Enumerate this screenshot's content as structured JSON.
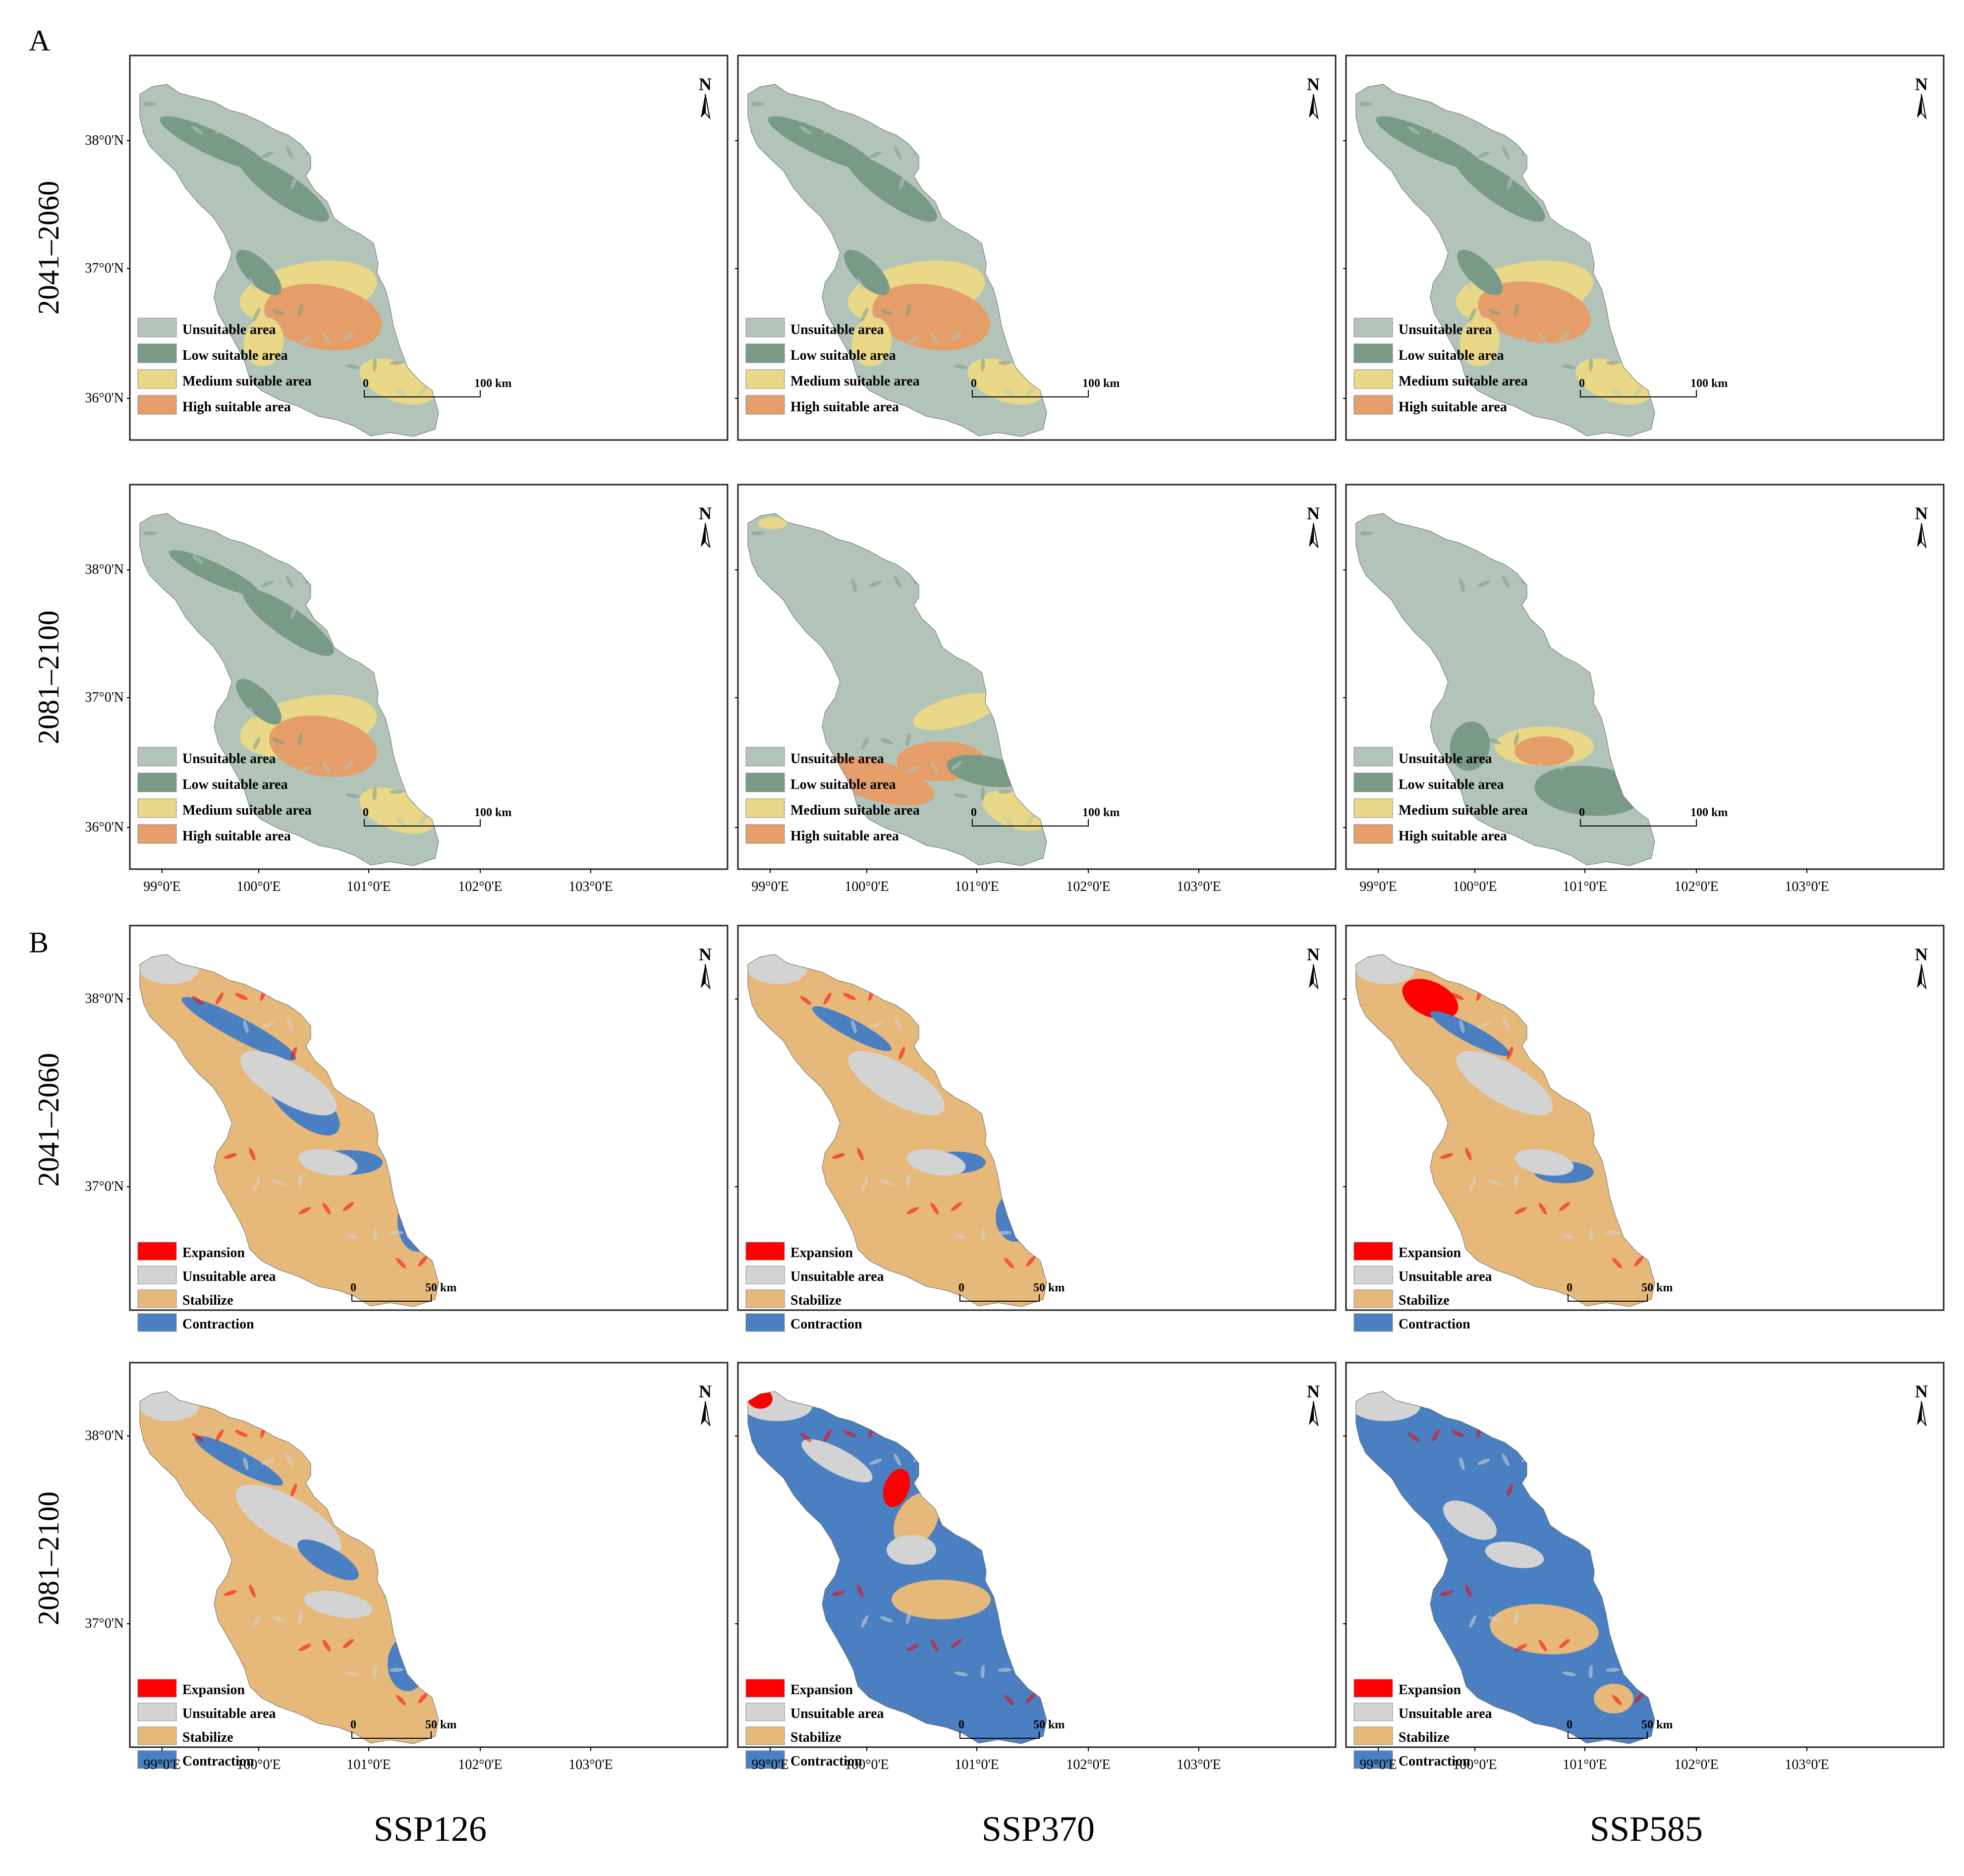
{
  "panels": [
    {
      "label": "A",
      "legend": [
        {
          "text": "Unsuitable area",
          "color": "#b2c4b8"
        },
        {
          "text": "Low suitable area",
          "color": "#7a9a88"
        },
        {
          "text": "Medium suitable area",
          "color": "#e8d888"
        },
        {
          "text": "High suitable area",
          "color": "#e59e6a"
        }
      ],
      "scalebar": {
        "start": "0",
        "end": "100",
        "unit": "km"
      }
    },
    {
      "label": "B",
      "legend": [
        {
          "text": "Expansion",
          "color": "#ff0000"
        },
        {
          "text": "Unsuitable area",
          "color": "#d3d3d3"
        },
        {
          "text": "Stabilize",
          "color": "#e6b97a"
        },
        {
          "text": "Contraction",
          "color": "#4a7fc1"
        }
      ],
      "scalebar": {
        "start": "0",
        "end": "50",
        "unit": "km"
      }
    }
  ],
  "periods": [
    "2041–2060",
    "2081–2100"
  ],
  "scenarios": [
    "SSP126",
    "SSP370",
    "SSP585"
  ],
  "lat_labels": [
    "38°0'N",
    "37°0'N",
    "36°0'N"
  ],
  "lon_labels": [
    "99°0'E",
    "100°0'E",
    "101°0'E",
    "102°0'E",
    "103°0'E"
  ],
  "north_label": "N"
}
